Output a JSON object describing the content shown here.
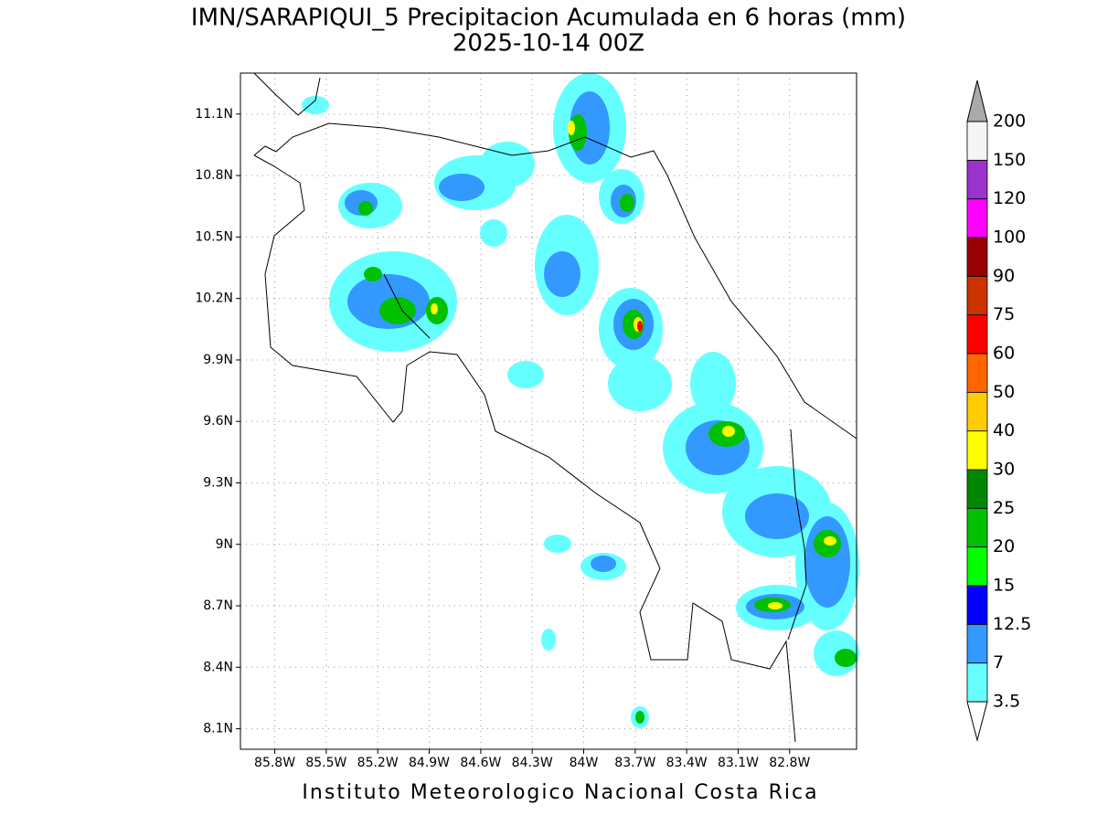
{
  "title": "IMN/SARAPIQUI_5 Precipitacion Acumulada en 6 horas (mm)",
  "subtitle": "2025-10-14 00Z",
  "map": {
    "xlim": [
      -86.0,
      -82.41
    ],
    "ylim": [
      8.0,
      11.3
    ],
    "xticks": [
      {
        "value": -85.8,
        "label": "85.8W"
      },
      {
        "value": -85.5,
        "label": "85.5W"
      },
      {
        "value": -85.2,
        "label": "85.2W"
      },
      {
        "value": -84.9,
        "label": "84.9W"
      },
      {
        "value": -84.6,
        "label": "84.6W"
      },
      {
        "value": -84.3,
        "label": "84.3W"
      },
      {
        "value": -84.0,
        "label": "84W"
      },
      {
        "value": -83.7,
        "label": "83.7W"
      },
      {
        "value": -83.4,
        "label": "83.4W"
      },
      {
        "value": -83.1,
        "label": "83.1W"
      },
      {
        "value": -82.8,
        "label": "82.8W"
      }
    ],
    "yticks": [
      {
        "value": 8.1,
        "label": "8.1N"
      },
      {
        "value": 8.4,
        "label": "8.4N"
      },
      {
        "value": 8.7,
        "label": "8.7N"
      },
      {
        "value": 9.0,
        "label": "9N"
      },
      {
        "value": 9.3,
        "label": "9.3N"
      },
      {
        "value": 9.6,
        "label": "9.6N"
      },
      {
        "value": 9.9,
        "label": "9.9N"
      },
      {
        "value": 10.2,
        "label": "10.2N"
      },
      {
        "value": 10.5,
        "label": "10.5N"
      },
      {
        "value": 10.8,
        "label": "10.8N"
      },
      {
        "value": 11.1,
        "label": "11.1N"
      }
    ],
    "grid": true
  },
  "colorbar": {
    "levels": [
      3.5,
      7,
      12.5,
      15,
      20,
      25,
      30,
      40,
      50,
      60,
      75,
      90,
      100,
      120,
      150,
      200
    ],
    "colors": [
      "#66ffff",
      "#3399ff",
      "#0000ff",
      "#00ff00",
      "#00c000",
      "#008800",
      "#ffff00",
      "#ffcc00",
      "#ff6600",
      "#ff0000",
      "#cc3300",
      "#990000",
      "#ff00ff",
      "#9933cc",
      "#f5f5f5"
    ],
    "under_color": "#ffffff",
    "over_color": "#aaaaaa"
  },
  "footer": "Instituto Meteorologico Nacional Costa Rica"
}
